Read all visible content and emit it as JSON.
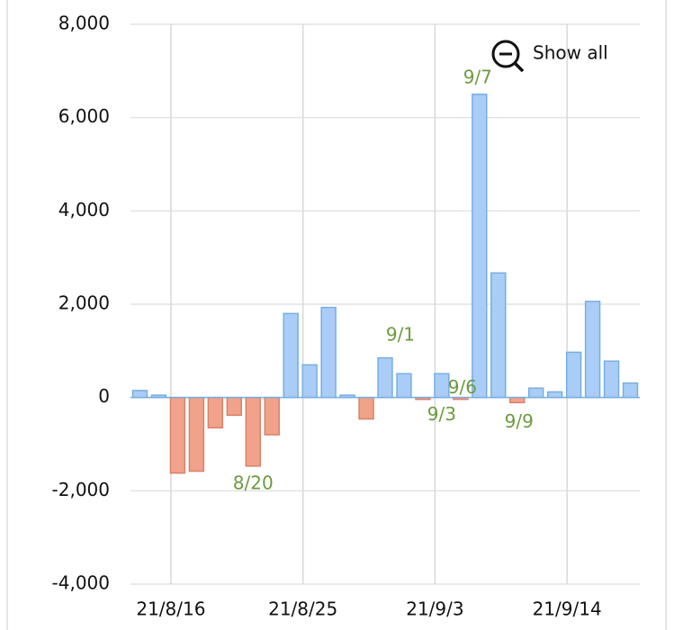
{
  "chart_data": {
    "type": "bar",
    "categories": [
      null,
      null,
      "21/8/16",
      null,
      null,
      null,
      null,
      null,
      null,
      "21/8/25",
      null,
      null,
      null,
      null,
      null,
      null,
      "21/9/3",
      null,
      null,
      null,
      null,
      null,
      null,
      "21/9/14",
      null,
      null,
      null
    ],
    "values": [
      150,
      50,
      -1620,
      -1580,
      -650,
      -380,
      -1470,
      -800,
      1800,
      700,
      1930,
      50,
      -460,
      850,
      510,
      -40,
      510,
      -40,
      6500,
      2670,
      -110,
      200,
      120,
      970,
      2060,
      780,
      310
    ],
    "point_labels": [
      null,
      null,
      null,
      null,
      null,
      null,
      "8/20",
      null,
      null,
      null,
      null,
      null,
      null,
      null,
      "9/1",
      null,
      "9/3",
      "9/6",
      "9/7",
      null,
      "9/9",
      null,
      null,
      null,
      null,
      null,
      null
    ],
    "color": "#a9cdf6",
    "negative_color": "#f0a38a",
    "ylim": [
      -4000,
      8000
    ],
    "yticks": [
      {
        "value": -4000,
        "label": "-4,000"
      },
      {
        "value": -2000,
        "label": "-2,000"
      },
      0,
      {
        "value": 2000,
        "label": "2,000"
      },
      {
        "value": 4000,
        "label": "4,000"
      },
      {
        "value": 6000,
        "label": "6,000"
      },
      {
        "value": 8000,
        "label": "8,000"
      }
    ],
    "grid": true,
    "show_all": "Show all"
  }
}
